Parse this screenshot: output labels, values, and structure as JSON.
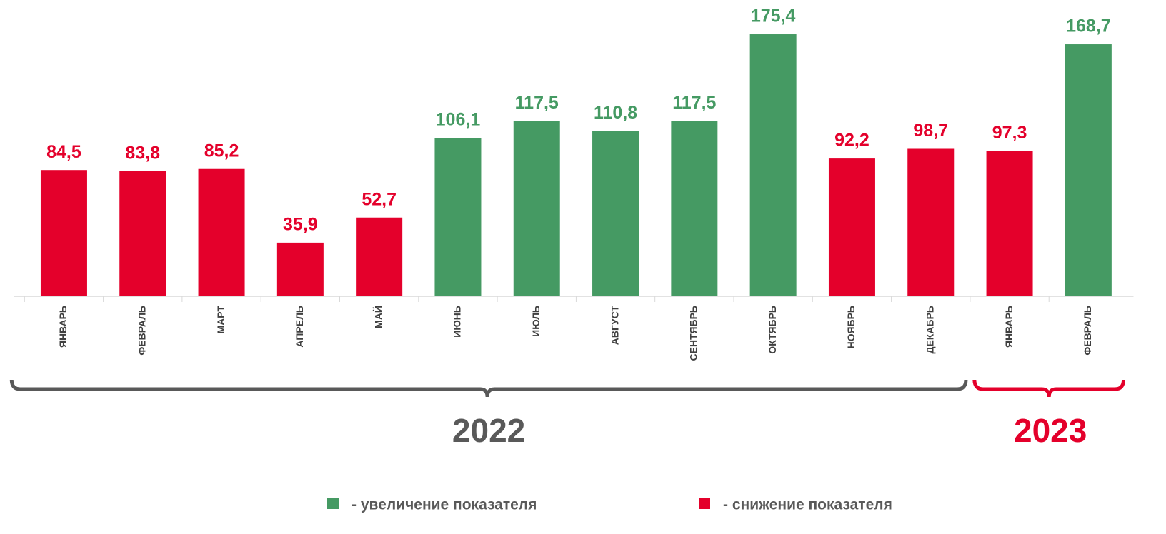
{
  "chart_data": {
    "type": "bar",
    "ylim": [
      0,
      180
    ],
    "groups": [
      {
        "label": "2022",
        "color": "#595959",
        "categories": [
          "ЯНВАРЬ",
          "ФЕВРАЛЬ",
          "МАРТ",
          "АПРЕЛЬ",
          "МАЙ",
          "ИЮНЬ",
          "ИЮЛЬ",
          "АВГУСТ",
          "СЕНТЯБРЬ",
          "ОКТЯБРЬ",
          "НОЯБРЬ",
          "ДЕКАБРЬ"
        ],
        "values": [
          84.5,
          83.8,
          85.2,
          35.9,
          52.7,
          106.1,
          117.5,
          110.8,
          117.5,
          175.4,
          92.2,
          98.7
        ],
        "value_labels": [
          "84,5",
          "83,8",
          "85,2",
          "35,9",
          "52,7",
          "106,1",
          "117,5",
          "110,8",
          "117,5",
          "175,4",
          "92,2",
          "98,7"
        ],
        "colors": [
          "#e4002b",
          "#e4002b",
          "#e4002b",
          "#e4002b",
          "#e4002b",
          "#459a63",
          "#459a63",
          "#459a63",
          "#459a63",
          "#459a63",
          "#e4002b",
          "#e4002b"
        ]
      },
      {
        "label": "2023",
        "color": "#e4002b",
        "categories": [
          "ЯНВАРЬ",
          "ФЕВРАЛЬ"
        ],
        "values": [
          97.3,
          168.7
        ],
        "value_labels": [
          "97,3",
          "168,7"
        ],
        "colors": [
          "#e4002b",
          "#459a63"
        ]
      }
    ],
    "legend": [
      {
        "label": "- увеличение показателя",
        "color": "#459a63"
      },
      {
        "label": "- снижение показателя",
        "color": "#e4002b"
      }
    ]
  }
}
